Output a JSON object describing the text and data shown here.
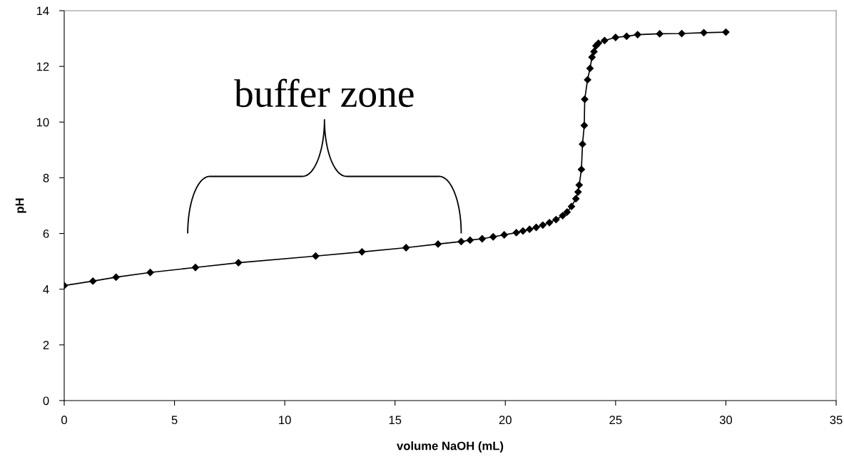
{
  "chart_data": {
    "type": "line",
    "xlabel": "volume NaOH (mL)",
    "ylabel": "pH",
    "annotations": [
      "buffer zone"
    ],
    "x": [
      0,
      1.3,
      2.35,
      3.9,
      5.95,
      7.9,
      11.4,
      13.5,
      15.5,
      16.95,
      18.0,
      18.4,
      18.95,
      19.45,
      19.95,
      20.5,
      20.8,
      21.1,
      21.4,
      21.7,
      22.0,
      22.3,
      22.6,
      22.8,
      23.0,
      23.2,
      23.3,
      23.35,
      23.45,
      23.5,
      23.58,
      23.6,
      23.73,
      23.84,
      23.93,
      24.02,
      24.11,
      24.22,
      24.5,
      25.0,
      25.5,
      26.0,
      27.0,
      28.0,
      29.0,
      30.0
    ],
    "series": [
      {
        "color": "#000000",
        "values": [
          4.13,
          4.29,
          4.43,
          4.6,
          4.78,
          4.95,
          5.19,
          5.34,
          5.49,
          5.62,
          5.71,
          5.76,
          5.81,
          5.88,
          5.95,
          6.03,
          6.09,
          6.15,
          6.22,
          6.3,
          6.39,
          6.5,
          6.64,
          6.77,
          6.97,
          7.25,
          7.49,
          7.74,
          8.3,
          9.21,
          9.88,
          10.82,
          11.52,
          11.93,
          12.33,
          12.53,
          12.74,
          12.83,
          12.93,
          13.04,
          13.08,
          13.14,
          13.17,
          13.18,
          13.21,
          13.23
        ]
      }
    ],
    "xlim": [
      0,
      35
    ],
    "xticks": [
      0,
      5,
      10,
      15,
      20,
      25,
      30,
      35
    ],
    "ylim": [
      0,
      14
    ],
    "yticks": [
      0,
      2,
      4,
      6,
      8,
      10,
      12,
      14
    ],
    "grid": false,
    "legend": false,
    "marker": "diamond",
    "line_style": "solid"
  }
}
